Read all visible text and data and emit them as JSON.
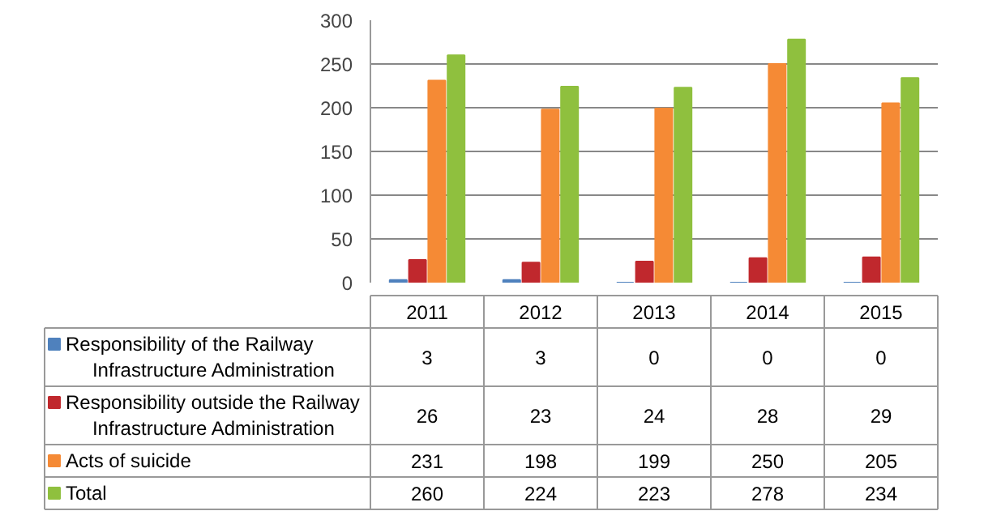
{
  "chart_data": {
    "type": "bar",
    "categories": [
      "2011",
      "2012",
      "2013",
      "2014",
      "2015"
    ],
    "series": [
      {
        "name": "Responsibility of the Railway Infrastructure Administration",
        "color": "#4f81bd",
        "values": [
          3,
          3,
          0,
          0,
          0
        ]
      },
      {
        "name": "Responsibility outside the Railway Infrastructure Administration",
        "color": "#c0282d",
        "values": [
          26,
          23,
          24,
          28,
          29
        ]
      },
      {
        "name": "Acts of suicide",
        "color": "#f58a35",
        "values": [
          231,
          198,
          199,
          250,
          205
        ]
      },
      {
        "name": "Total",
        "color": "#8fc03e",
        "values": [
          260,
          224,
          223,
          278,
          234
        ]
      }
    ],
    "ylim": [
      0,
      300
    ],
    "yticks": [
      0,
      50,
      100,
      150,
      200,
      250,
      300
    ],
    "grid": "y",
    "data_labels": true,
    "legend": "bottom"
  }
}
